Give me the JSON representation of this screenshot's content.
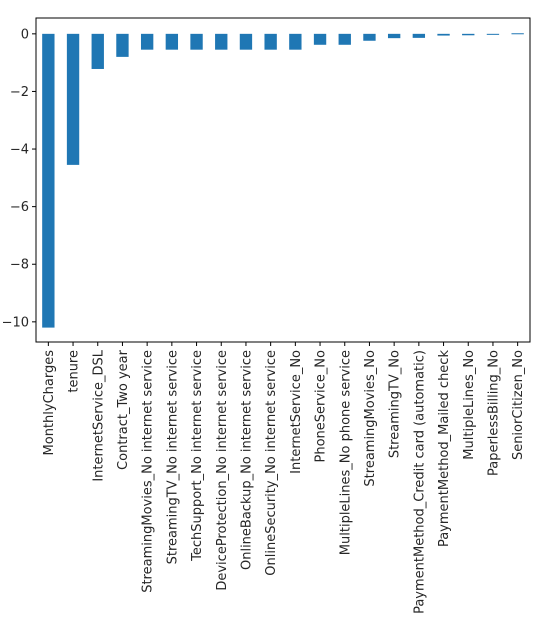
{
  "chart_data": {
    "type": "bar",
    "orientation": "vertical",
    "categories": [
      "MonthlyCharges",
      "tenure",
      "InternetService_DSL",
      "Contract_Two year",
      "StreamingMovies_No internet service",
      "StreamingTV_No internet service",
      "TechSupport_No internet service",
      "DeviceProtection_No internet service",
      "OnlineBackup_No internet service",
      "OnlineSecurity_No internet service",
      "InternetService_No",
      "PhoneService_No",
      "MultipleLines_No phone service",
      "StreamingMovies_No",
      "StreamingTV_No",
      "PaymentMethod_Credit card (automatic)",
      "PaymentMethod_Mailed check",
      "MultipleLines_No",
      "PaperlessBilling_No",
      "SeniorCitizen_No"
    ],
    "values": [
      -10.2,
      -4.55,
      -1.22,
      -0.8,
      -0.55,
      -0.55,
      -0.55,
      -0.55,
      -0.55,
      -0.55,
      -0.55,
      -0.38,
      -0.38,
      -0.24,
      -0.15,
      -0.14,
      -0.06,
      -0.05,
      -0.02,
      0.02
    ],
    "ylim": [
      -10.7,
      0.55
    ],
    "yticks": [
      0,
      -2,
      -4,
      -6,
      -8,
      -10
    ],
    "ytick_labels": [
      "0",
      "−2",
      "−4",
      "−6",
      "−8",
      "−10"
    ],
    "title": "",
    "xlabel": "",
    "ylabel": "",
    "bar_color": "#1f77b4",
    "grid": false,
    "legend": false
  }
}
